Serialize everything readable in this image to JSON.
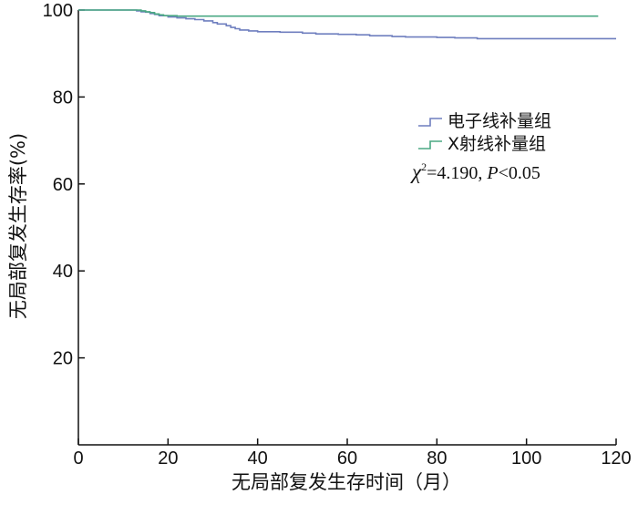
{
  "chart_data": {
    "type": "line",
    "step": true,
    "xlabel": "无局部复发生存时间（月）",
    "ylabel": "无局部复发生存率(%)",
    "xlim": [
      0,
      120
    ],
    "ylim": [
      0,
      100
    ],
    "xticks": [
      0,
      20,
      40,
      60,
      80,
      100,
      120
    ],
    "yticks": [
      20,
      40,
      60,
      80,
      100
    ],
    "grid": false,
    "legend_position": "upper-right",
    "series": [
      {
        "name": "电子线补量组",
        "color": "#6f7fbf",
        "x": [
          0,
          10,
          13,
          14,
          15,
          16,
          17,
          18,
          20,
          22,
          24,
          26,
          28,
          30,
          31,
          33,
          34,
          35,
          36,
          38,
          40,
          45,
          50,
          53,
          58,
          62,
          65,
          70,
          73,
          80,
          84,
          89,
          95,
          100,
          108,
          120
        ],
        "y": [
          100,
          100,
          99.8,
          99.6,
          99.5,
          99.2,
          99.0,
          98.7,
          98.4,
          98.2,
          98.0,
          97.8,
          97.5,
          97.1,
          96.8,
          96.4,
          96.0,
          95.7,
          95.4,
          95.2,
          95.0,
          94.9,
          94.7,
          94.5,
          94.4,
          94.3,
          94.1,
          93.9,
          93.8,
          93.7,
          93.6,
          93.4,
          93.4,
          93.4,
          93.4,
          93.4
        ]
      },
      {
        "name": "X射线补量组",
        "color": "#4aa883",
        "x": [
          0,
          12,
          14,
          15,
          16,
          17,
          18,
          19,
          22,
          30,
          60,
          90,
          116
        ],
        "y": [
          100,
          100,
          99.8,
          99.6,
          99.4,
          99.1,
          98.9,
          98.7,
          98.6,
          98.6,
          98.6,
          98.6,
          98.6
        ]
      }
    ],
    "annotation": {
      "chi_symbol": "χ",
      "chi_sup": "2",
      "chi_value": "=4.190, ",
      "p_symbol": "P",
      "p_value": "<0.05"
    }
  }
}
